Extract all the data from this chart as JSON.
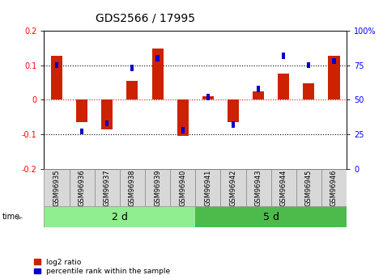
{
  "title": "GDS2566 / 17995",
  "samples": [
    "GSM96935",
    "GSM96936",
    "GSM96937",
    "GSM96938",
    "GSM96939",
    "GSM96940",
    "GSM96941",
    "GSM96942",
    "GSM96943",
    "GSM96944",
    "GSM96945",
    "GSM96946"
  ],
  "log2_ratio": [
    0.128,
    -0.065,
    -0.085,
    0.055,
    0.148,
    -0.105,
    0.01,
    -0.065,
    0.025,
    0.075,
    0.048,
    0.128
  ],
  "percentile_rank": [
    75,
    27,
    33,
    73,
    80,
    28,
    52,
    32,
    58,
    82,
    75,
    78
  ],
  "groups": [
    {
      "label": "2 d",
      "start": 0,
      "end": 6,
      "color": "#90EE90"
    },
    {
      "label": "5 d",
      "start": 6,
      "end": 12,
      "color": "#4CBB4C"
    }
  ],
  "bar_color": "#CC2200",
  "pct_color": "#0000CC",
  "ylim_left": [
    -0.2,
    0.2
  ],
  "ylim_right": [
    0,
    100
  ],
  "yticks_left": [
    -0.2,
    -0.1,
    0.0,
    0.1,
    0.2
  ],
  "yticks_right": [
    0,
    25,
    50,
    75,
    100
  ],
  "background_color": "#FFFFFF",
  "group_label_fontsize": 9,
  "sample_label_fontsize": 6,
  "tick_label_fontsize": 7,
  "title_fontsize": 10
}
